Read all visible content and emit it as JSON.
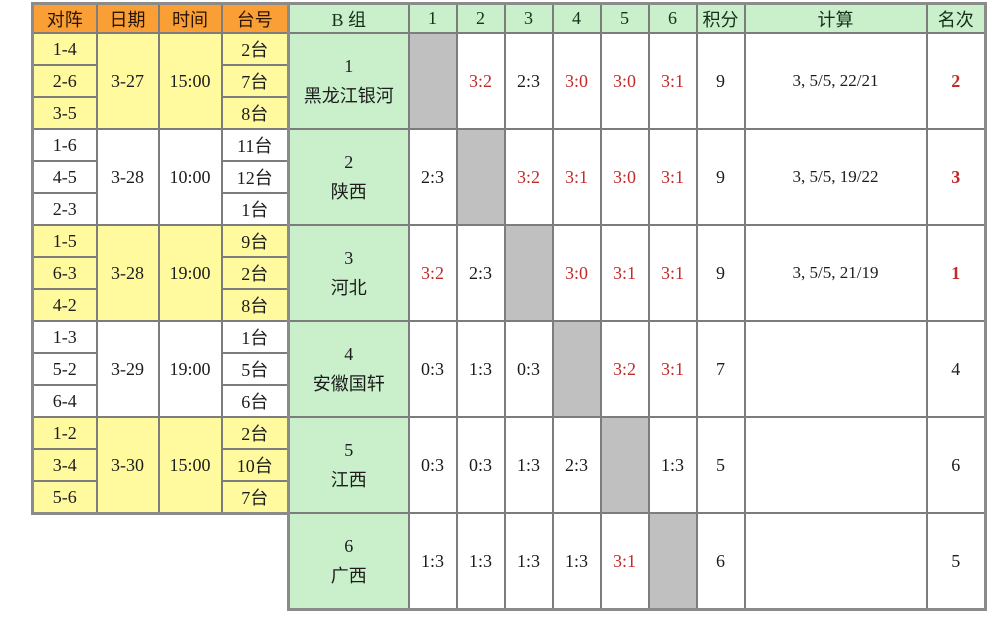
{
  "colors": {
    "header_orange": "#fa9f35",
    "header_green": "#c9efcb",
    "row_highlight_yellow": "#fffa9d",
    "diagonal_gray": "#c0c0c0",
    "win_red": "#c42a28",
    "grid_border": "#7d7d7d"
  },
  "left_table": {
    "headers": [
      "对阵",
      "日期",
      "时间",
      "台号"
    ],
    "groups": [
      {
        "matches": [
          "1-4",
          "2-6",
          "3-5"
        ],
        "date": "3-27",
        "time": "15:00",
        "tables": [
          "2台",
          "7台",
          "8台"
        ],
        "highlight": true
      },
      {
        "matches": [
          "1-6",
          "4-5",
          "2-3"
        ],
        "date": "3-28",
        "time": "10:00",
        "tables": [
          "11台",
          "12台",
          "1台"
        ],
        "highlight": false
      },
      {
        "matches": [
          "1-5",
          "6-3",
          "4-2"
        ],
        "date": "3-28",
        "time": "19:00",
        "tables": [
          "9台",
          "2台",
          "8台"
        ],
        "highlight": true
      },
      {
        "matches": [
          "1-3",
          "5-2",
          "6-4"
        ],
        "date": "3-29",
        "time": "19:00",
        "tables": [
          "1台",
          "5台",
          "6台"
        ],
        "highlight": false
      },
      {
        "matches": [
          "1-2",
          "3-4",
          "5-6"
        ],
        "date": "3-30",
        "time": "15:00",
        "tables": [
          "2台",
          "10台",
          "7台"
        ],
        "highlight": true
      }
    ]
  },
  "right_table": {
    "group_label": "B 组",
    "opponent_headers": [
      "1",
      "2",
      "3",
      "4",
      "5",
      "6"
    ],
    "points_header": "积分",
    "calc_header": "计算",
    "rank_header": "名次",
    "teams": [
      {
        "number": "1",
        "name": "黑龙江银河",
        "scores": [
          "",
          "3:2",
          "2:3",
          "3:0",
          "3:0",
          "3:1"
        ],
        "points": "9",
        "calc": "3, 5/5, 22/21",
        "rank": "2",
        "rank_red": true
      },
      {
        "number": "2",
        "name": "陕西",
        "scores": [
          "2:3",
          "",
          "3:2",
          "3:1",
          "3:0",
          "3:1"
        ],
        "points": "9",
        "calc": "3, 5/5, 19/22",
        "rank": "3",
        "rank_red": true
      },
      {
        "number": "3",
        "name": "河北",
        "scores": [
          "3:2",
          "2:3",
          "",
          "3:0",
          "3:1",
          "3:1"
        ],
        "points": "9",
        "calc": "3, 5/5, 21/19",
        "rank": "1",
        "rank_red": true
      },
      {
        "number": "4",
        "name": "安徽国轩",
        "scores": [
          "0:3",
          "1:3",
          "0:3",
          "",
          "3:2",
          "3:1"
        ],
        "points": "7",
        "calc": "",
        "rank": "4",
        "rank_red": false
      },
      {
        "number": "5",
        "name": "江西",
        "scores": [
          "0:3",
          "0:3",
          "1:3",
          "2:3",
          "",
          "1:3"
        ],
        "points": "5",
        "calc": "",
        "rank": "6",
        "rank_red": false
      },
      {
        "number": "6",
        "name": "广西",
        "scores": [
          "1:3",
          "1:3",
          "1:3",
          "1:3",
          "3:1",
          ""
        ],
        "points": "6",
        "calc": "",
        "rank": "5",
        "rank_red": false
      }
    ]
  }
}
